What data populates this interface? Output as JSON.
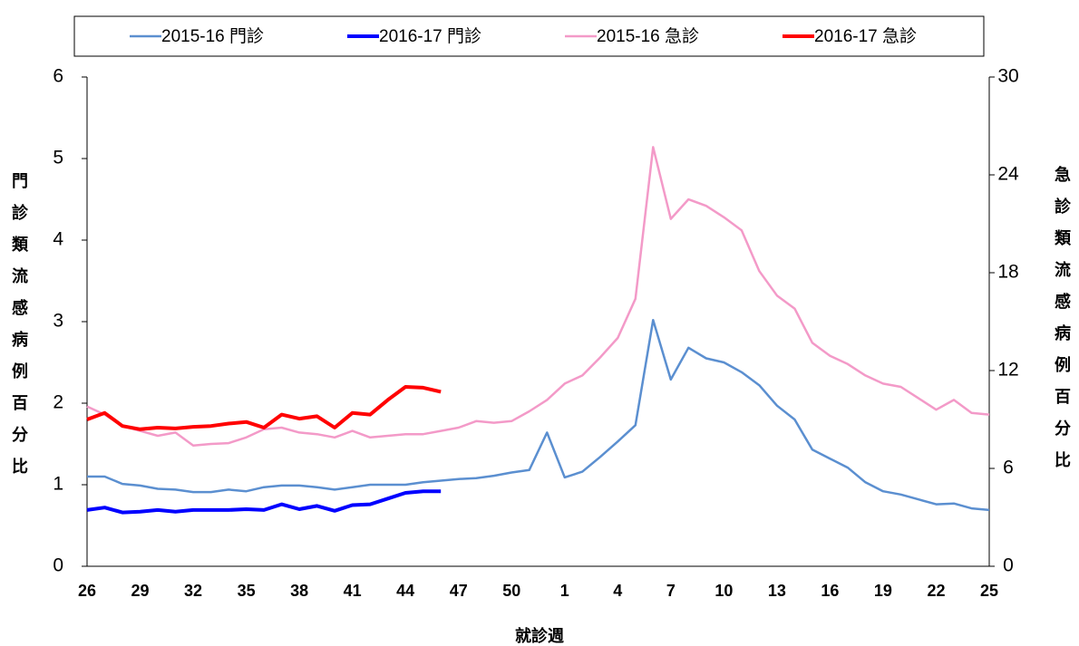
{
  "chart_data": {
    "type": "line",
    "x_label": "就診週",
    "y_label": "門診類流感病例百分比",
    "y2_label": "急診類流感病例百分比",
    "y_label_color": "#0000ff",
    "y2_label_color": "#ff0000",
    "categories": [
      "26",
      null,
      null,
      "29",
      null,
      null,
      "32",
      null,
      null,
      "35",
      null,
      null,
      "38",
      null,
      null,
      "41",
      null,
      null,
      "44",
      null,
      null,
      "47",
      null,
      null,
      "50",
      null,
      null,
      "1",
      null,
      null,
      "4",
      null,
      null,
      "7",
      null,
      null,
      "10",
      null,
      null,
      "13",
      null,
      null,
      "16",
      null,
      null,
      "19",
      null,
      null,
      "22",
      null,
      null,
      "25"
    ],
    "ylim": [
      0,
      6
    ],
    "yticks": [
      0,
      1,
      2,
      3,
      4,
      5,
      6
    ],
    "y2lim": [
      0,
      30
    ],
    "y2ticks": [
      0,
      6,
      12,
      18,
      24,
      30
    ],
    "grid": false,
    "legend": "top",
    "series": [
      {
        "name": "2015-16 門診",
        "color": "#5b8fd0",
        "line_width": 2.5,
        "values": [
          1.1,
          1.1,
          1.01,
          0.99,
          0.95,
          0.94,
          0.91,
          0.91,
          0.94,
          0.92,
          0.97,
          0.99,
          0.99,
          0.97,
          0.94,
          0.97,
          1.0,
          1.0,
          1.0,
          1.03,
          1.05,
          1.07,
          1.08,
          1.11,
          1.15,
          1.18,
          1.64,
          1.09,
          1.16,
          1.34,
          1.53,
          1.73,
          3.02,
          2.29,
          2.68,
          2.55,
          2.5,
          2.38,
          2.22,
          1.97,
          1.8,
          1.43,
          1.32,
          1.21,
          1.03,
          0.92,
          0.88,
          0.82,
          0.76,
          0.77,
          0.71,
          0.69
        ]
      },
      {
        "name": "2016-17 門診",
        "color": "#0000ff",
        "line_width": 4,
        "values": [
          0.69,
          0.72,
          0.66,
          0.67,
          0.69,
          0.67,
          0.69,
          0.69,
          0.69,
          0.7,
          0.69,
          0.76,
          0.7,
          0.74,
          0.68,
          0.75,
          0.76,
          0.83,
          0.9,
          0.92,
          0.92,
          null,
          null,
          null,
          null,
          null,
          null,
          null,
          null,
          null,
          null,
          null,
          null,
          null,
          null,
          null,
          null,
          null,
          null,
          null,
          null,
          null,
          null,
          null,
          null,
          null,
          null,
          null,
          null,
          null,
          null,
          null
        ]
      },
      {
        "name": "2015-16 急診",
        "color": "#f39ac8",
        "line_width": 2.5,
        "axis": "y2",
        "values": [
          9.8,
          9.3,
          8.6,
          8.3,
          8.0,
          8.2,
          7.4,
          7.5,
          7.55,
          7.9,
          8.4,
          8.5,
          8.2,
          8.1,
          7.9,
          8.3,
          7.9,
          8.0,
          8.1,
          8.1,
          8.3,
          8.5,
          8.9,
          8.8,
          8.9,
          9.5,
          10.2,
          11.2,
          11.7,
          12.8,
          14.0,
          16.4,
          25.7,
          21.3,
          22.5,
          22.1,
          21.4,
          20.6,
          18.1,
          16.6,
          15.8,
          13.7,
          12.9,
          12.4,
          11.7,
          11.2,
          11.0,
          10.3,
          9.6,
          10.2,
          9.4,
          9.3
        ]
      },
      {
        "name": "2016-17 急診",
        "color": "#ff0000",
        "line_width": 4,
        "axis": "y2",
        "values": [
          9.0,
          9.4,
          8.6,
          8.4,
          8.5,
          8.45,
          8.55,
          8.6,
          8.75,
          8.85,
          8.5,
          9.3,
          9.05,
          9.2,
          8.5,
          9.4,
          9.3,
          10.2,
          11.0,
          10.95,
          10.7,
          null,
          null,
          null,
          null,
          null,
          null,
          null,
          null,
          null,
          null,
          null,
          null,
          null,
          null,
          null,
          null,
          null,
          null,
          null,
          null,
          null,
          null,
          null,
          null,
          null,
          null,
          null,
          null,
          null,
          null,
          null
        ]
      }
    ]
  }
}
